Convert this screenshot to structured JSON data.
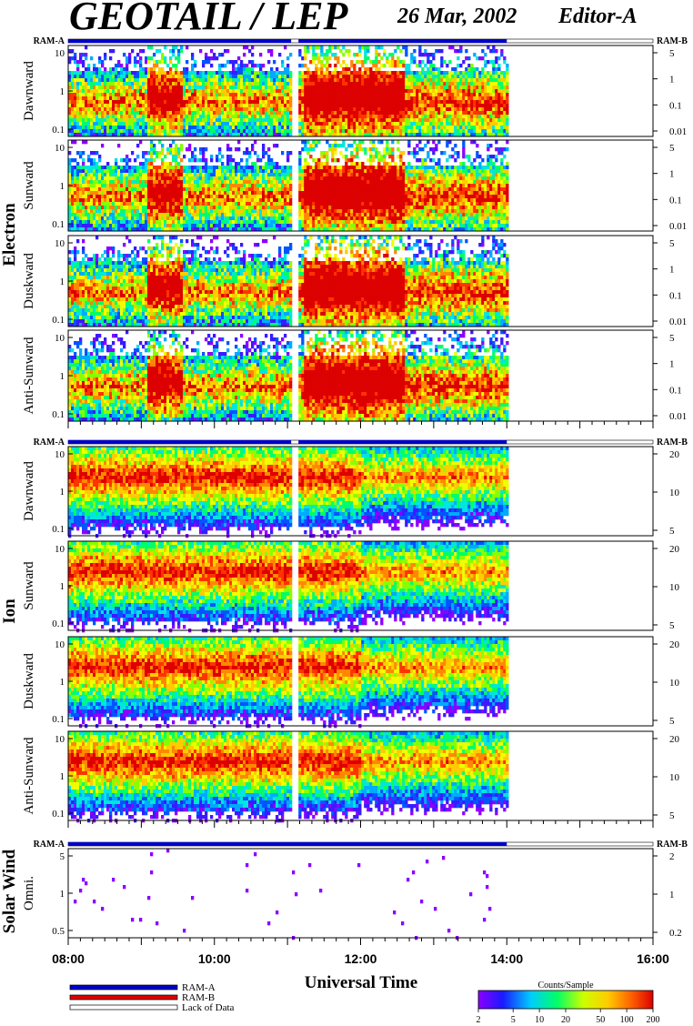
{
  "title": {
    "main": "GEOTAIL / LEP",
    "date": "26 Mar, 2002",
    "editor": "Editor-A"
  },
  "time_axis": {
    "label": "Universal Time",
    "ticks": [
      "08:00",
      "10:00",
      "12:00",
      "14:00",
      "16:00"
    ],
    "range_hours": [
      8,
      16
    ]
  },
  "ram_labels": {
    "a": "RAM-A",
    "b": "RAM-B"
  },
  "groups": [
    {
      "label": "Electron"
    },
    {
      "label": "Ion"
    },
    {
      "label": "Solar Wind"
    }
  ],
  "legend": {
    "items": [
      {
        "label": "RAM-A",
        "color": "#0000cc"
      },
      {
        "label": "RAM-B",
        "color": "#dd0000"
      },
      {
        "label": "Lack of Data",
        "color": "#ffffff"
      }
    ]
  },
  "colorbar": {
    "title": "Counts/Sample",
    "ticks": [
      "2",
      "5",
      "10",
      "20",
      "50",
      "100",
      "200"
    ],
    "range": [
      2,
      200
    ],
    "scale": "log"
  },
  "chart_data": [
    {
      "type": "heatmap",
      "group": "Electron",
      "ylabel": "Dawnward",
      "left_ticks": [
        "10",
        "1",
        "0.1"
      ],
      "right_ticks": [
        "5",
        "1",
        "0.1",
        "0.01"
      ],
      "data_hours": [
        [
          8.0,
          11.05
        ],
        [
          11.15,
          14.0
        ]
      ],
      "profile": "electron",
      "seed": 1
    },
    {
      "type": "heatmap",
      "group": "Electron",
      "ylabel": "Sunward",
      "left_ticks": [
        "10",
        "1",
        "0.1"
      ],
      "right_ticks": [
        "5",
        "1",
        "0.1",
        "0.01"
      ],
      "data_hours": [
        [
          8.0,
          11.05
        ],
        [
          11.15,
          14.0
        ]
      ],
      "profile": "electron",
      "seed": 2
    },
    {
      "type": "heatmap",
      "group": "Electron",
      "ylabel": "Duskward",
      "left_ticks": [
        "10",
        "1",
        "0.1"
      ],
      "right_ticks": [
        "5",
        "1",
        "0.1",
        "0.01"
      ],
      "data_hours": [
        [
          8.0,
          11.05
        ],
        [
          11.15,
          14.0
        ]
      ],
      "profile": "electron",
      "seed": 3
    },
    {
      "type": "heatmap",
      "group": "Electron",
      "ylabel": "Anti-Sunward",
      "left_ticks": [
        "10",
        "1",
        "0.1"
      ],
      "right_ticks": [
        "5",
        "1",
        "0.1",
        "0.01"
      ],
      "data_hours": [
        [
          8.0,
          11.05
        ],
        [
          11.15,
          14.0
        ]
      ],
      "profile": "electron",
      "seed": 4
    },
    {
      "type": "heatmap",
      "group": "Ion",
      "ylabel": "Dawnward",
      "left_ticks": [
        "10",
        "1",
        "0.1"
      ],
      "right_ticks": [
        "20",
        "10",
        "5"
      ],
      "data_hours": [
        [
          8.0,
          11.05
        ],
        [
          11.15,
          14.0
        ]
      ],
      "profile": "ion",
      "seed": 5
    },
    {
      "type": "heatmap",
      "group": "Ion",
      "ylabel": "Sunward",
      "left_ticks": [
        "10",
        "1",
        "0.1"
      ],
      "right_ticks": [
        "20",
        "10",
        "5"
      ],
      "data_hours": [
        [
          8.0,
          11.05
        ],
        [
          11.15,
          14.0
        ]
      ],
      "profile": "ion",
      "seed": 6
    },
    {
      "type": "heatmap",
      "group": "Ion",
      "ylabel": "Duskward",
      "left_ticks": [
        "10",
        "1",
        "0.1"
      ],
      "right_ticks": [
        "20",
        "10",
        "5"
      ],
      "data_hours": [
        [
          8.0,
          11.05
        ],
        [
          11.15,
          14.0
        ]
      ],
      "profile": "ion",
      "seed": 7
    },
    {
      "type": "heatmap",
      "group": "Ion",
      "ylabel": "Anti-Sunward",
      "left_ticks": [
        "10",
        "1",
        "0.1"
      ],
      "right_ticks": [
        "20",
        "10",
        "5"
      ],
      "data_hours": [
        [
          8.0,
          11.05
        ],
        [
          11.15,
          14.0
        ]
      ],
      "profile": "ion",
      "seed": 8
    },
    {
      "type": "scatter",
      "group": "Solar Wind",
      "ylabel": "Omni.",
      "left_ticks": [
        "5",
        "1",
        "0.5"
      ],
      "right_ticks": [
        "2",
        "1",
        "0.2"
      ],
      "data_hours": [
        [
          8.0,
          14.0
        ]
      ],
      "profile": "sparse",
      "seed": 9
    }
  ]
}
